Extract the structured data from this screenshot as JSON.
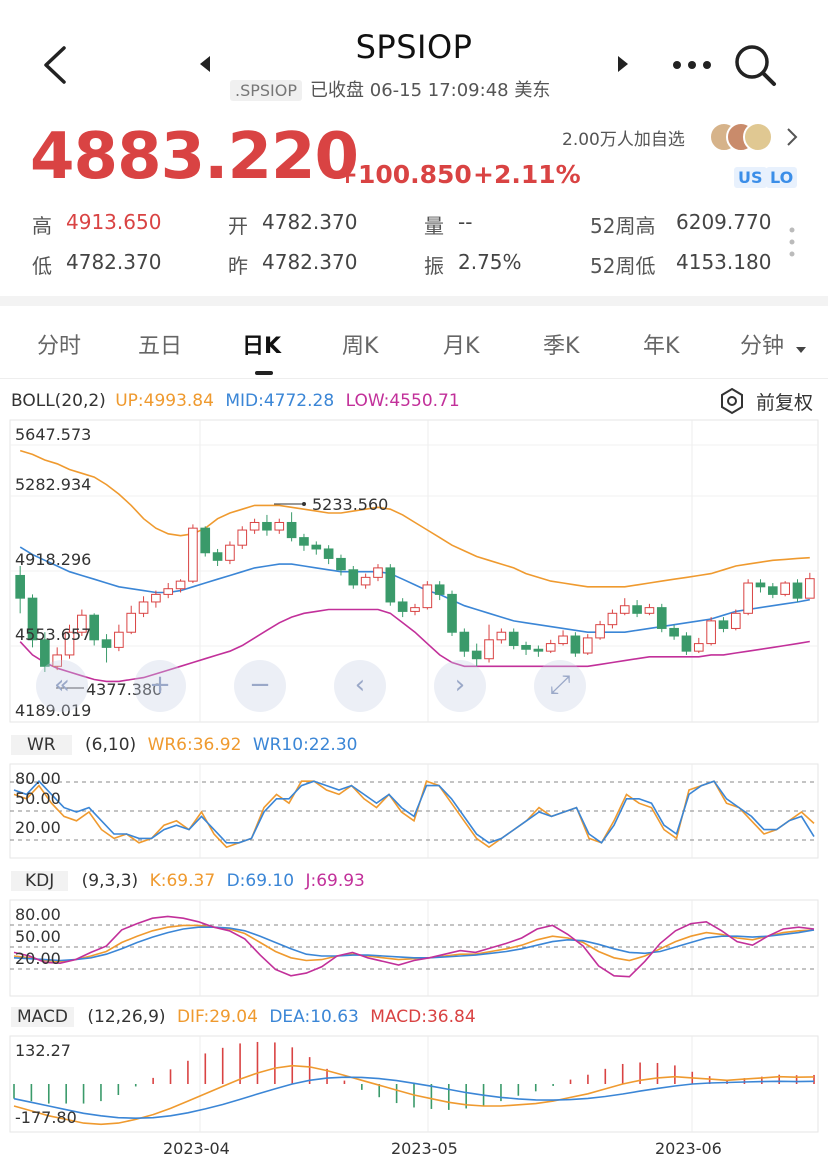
{
  "header": {
    "title": "SPSIOP",
    "code": ".SPSIOP",
    "status": "已收盘 06-15 17:09:48 美东"
  },
  "quote": {
    "price": "4883.220",
    "change": "+100.850",
    "change_pct": "+2.11%",
    "follow_text": "2.00万人加自选",
    "badge_us": "US",
    "badge_lo": "LO"
  },
  "stats": [
    {
      "label": "高",
      "value": "4913.650"
    },
    {
      "label": "开",
      "value": "4782.370"
    },
    {
      "label": "量",
      "value": "--"
    },
    {
      "label": "52周高",
      "value": "6209.770"
    },
    {
      "label": "低",
      "value": "4782.370"
    },
    {
      "label": "昨",
      "value": "4782.370"
    },
    {
      "label": "振",
      "value": "2.75%"
    },
    {
      "label": "52周低",
      "value": "4153.180"
    }
  ],
  "tabs": [
    "分时",
    "五日",
    "日K",
    "周K",
    "月K",
    "季K",
    "年K",
    "分钟"
  ],
  "active_tab": "日K",
  "fuquan": "前复权",
  "boll": {
    "name": "BOLL(20,2)",
    "up": "UP:4993.84",
    "mid": "MID:4772.28",
    "low": "LOW:4550.71",
    "axis": [
      "5647.573",
      "5282.934",
      "4918.296",
      "4553.657",
      "4189.019"
    ],
    "high_marker": "5233.560",
    "low_marker": "4377.380"
  },
  "wr": {
    "name": "WR",
    "params": "(6,10)",
    "wr6": "WR6:36.92",
    "wr10": "WR10:22.30",
    "axis": [
      "80.00",
      "50.00",
      "20.00"
    ]
  },
  "kdj": {
    "name": "KDJ",
    "params": "(9,3,3)",
    "k": "K:69.37",
    "d": "D:69.10",
    "j": "J:69.93",
    "axis": [
      "80.00",
      "50.00",
      "20.00"
    ]
  },
  "macd": {
    "name": "MACD",
    "params": "(12,26,9)",
    "dif": "DIF:29.04",
    "dea": "DEA:10.63",
    "macd": "MACD:36.84",
    "axis": [
      "132.27",
      "-177.80"
    ]
  },
  "dates": [
    "2023-04",
    "2023-05",
    "2023-06"
  ],
  "colors": {
    "up": "#d94343",
    "down": "#3a9a6a",
    "orange": "#ef9a2f",
    "blue": "#3b86d6",
    "magenta": "#c2309a"
  },
  "chart_data": {
    "type": "candlestick",
    "ylim": [
      4189.019,
      5647.573
    ],
    "candles": [
      [
        4900,
        4780,
        4950,
        4700
      ],
      [
        4780,
        4560,
        4800,
        4520
      ],
      [
        4560,
        4420,
        4600,
        4390
      ],
      [
        4420,
        4480,
        4520,
        4400
      ],
      [
        4480,
        4600,
        4640,
        4460
      ],
      [
        4600,
        4690,
        4720,
        4580
      ],
      [
        4690,
        4560,
        4700,
        4530
      ],
      [
        4560,
        4520,
        4590,
        4440
      ],
      [
        4520,
        4600,
        4640,
        4500
      ],
      [
        4600,
        4700,
        4740,
        4590
      ],
      [
        4700,
        4760,
        4790,
        4680
      ],
      [
        4760,
        4800,
        4820,
        4730
      ],
      [
        4800,
        4830,
        4860,
        4780
      ],
      [
        4830,
        4870,
        4880,
        4810
      ],
      [
        4870,
        5150,
        5170,
        4860
      ],
      [
        5150,
        5020,
        5160,
        5000
      ],
      [
        5020,
        4980,
        5040,
        4950
      ],
      [
        4980,
        5060,
        5080,
        4960
      ],
      [
        5060,
        5140,
        5160,
        5040
      ],
      [
        5140,
        5180,
        5200,
        5120
      ],
      [
        5180,
        5140,
        5220,
        5110
      ],
      [
        5140,
        5180,
        5200,
        5120
      ],
      [
        5180,
        5100,
        5234,
        5080
      ],
      [
        5100,
        5060,
        5120,
        5030
      ],
      [
        5060,
        5040,
        5080,
        5010
      ],
      [
        5040,
        4990,
        5060,
        4960
      ],
      [
        4990,
        4930,
        5010,
        4900
      ],
      [
        4930,
        4850,
        4950,
        4830
      ],
      [
        4850,
        4890,
        4910,
        4830
      ],
      [
        4890,
        4940,
        4960,
        4870
      ],
      [
        4940,
        4760,
        4960,
        4740
      ],
      [
        4760,
        4710,
        4780,
        4680
      ],
      [
        4710,
        4730,
        4750,
        4690
      ],
      [
        4730,
        4850,
        4870,
        4720
      ],
      [
        4850,
        4800,
        4870,
        4770
      ],
      [
        4800,
        4600,
        4820,
        4580
      ],
      [
        4600,
        4500,
        4620,
        4470
      ],
      [
        4500,
        4460,
        4540,
        4420
      ],
      [
        4460,
        4560,
        4640,
        4440
      ],
      [
        4560,
        4600,
        4620,
        4540
      ],
      [
        4600,
        4530,
        4620,
        4510
      ],
      [
        4530,
        4510,
        4550,
        4480
      ],
      [
        4510,
        4500,
        4530,
        4470
      ],
      [
        4500,
        4540,
        4560,
        4490
      ],
      [
        4540,
        4580,
        4610,
        4530
      ],
      [
        4580,
        4490,
        4600,
        4470
      ],
      [
        4490,
        4570,
        4590,
        4480
      ],
      [
        4570,
        4640,
        4660,
        4560
      ],
      [
        4640,
        4700,
        4720,
        4620
      ],
      [
        4700,
        4740,
        4780,
        4690
      ],
      [
        4740,
        4700,
        4770,
        4680
      ],
      [
        4700,
        4730,
        4750,
        4690
      ],
      [
        4730,
        4620,
        4750,
        4600
      ],
      [
        4620,
        4580,
        4640,
        4560
      ],
      [
        4580,
        4500,
        4600,
        4480
      ],
      [
        4500,
        4540,
        4570,
        4490
      ],
      [
        4540,
        4660,
        4680,
        4530
      ],
      [
        4660,
        4620,
        4680,
        4600
      ],
      [
        4620,
        4700,
        4720,
        4610
      ],
      [
        4700,
        4860,
        4880,
        4690
      ],
      [
        4860,
        4840,
        4880,
        4810
      ],
      [
        4840,
        4800,
        4860,
        4780
      ],
      [
        4800,
        4860,
        4870,
        4790
      ],
      [
        4860,
        4780,
        4880,
        4760
      ],
      [
        4780,
        4883,
        4914,
        4782
      ]
    ],
    "boll_up": [
      5560,
      5540,
      5510,
      5490,
      5460,
      5440,
      5420,
      5380,
      5330,
      5270,
      5200,
      5150,
      5120,
      5110,
      5120,
      5150,
      5200,
      5230,
      5250,
      5270,
      5270,
      5270,
      5260,
      5250,
      5240,
      5230,
      5230,
      5240,
      5250,
      5260,
      5250,
      5220,
      5180,
      5140,
      5100,
      5060,
      5030,
      5000,
      4980,
      4960,
      4940,
      4910,
      4890,
      4870,
      4860,
      4850,
      4840,
      4840,
      4840,
      4840,
      4850,
      4860,
      4870,
      4880,
      4890,
      4900,
      4910,
      4930,
      4950,
      4960,
      4970,
      4980,
      4985,
      4990,
      4994
    ],
    "boll_mid": [
      5050,
      5010,
      4980,
      4950,
      4920,
      4900,
      4880,
      4860,
      4840,
      4830,
      4820,
      4810,
      4810,
      4820,
      4840,
      4860,
      4880,
      4900,
      4920,
      4940,
      4950,
      4960,
      4960,
      4950,
      4940,
      4930,
      4920,
      4920,
      4920,
      4920,
      4910,
      4880,
      4850,
      4820,
      4800,
      4770,
      4740,
      4720,
      4700,
      4680,
      4660,
      4650,
      4640,
      4630,
      4620,
      4610,
      4600,
      4600,
      4600,
      4600,
      4610,
      4620,
      4630,
      4640,
      4650,
      4660,
      4670,
      4690,
      4710,
      4720,
      4730,
      4740,
      4750,
      4760,
      4772
    ],
    "boll_low": [
      4550,
      4480,
      4440,
      4410,
      4390,
      4370,
      4350,
      4340,
      4340,
      4350,
      4360,
      4380,
      4400,
      4420,
      4440,
      4460,
      4480,
      4500,
      4530,
      4570,
      4610,
      4650,
      4680,
      4700,
      4710,
      4720,
      4720,
      4720,
      4720,
      4720,
      4700,
      4650,
      4600,
      4540,
      4480,
      4440,
      4420,
      4420,
      4420,
      4420,
      4420,
      4420,
      4420,
      4420,
      4420,
      4420,
      4420,
      4430,
      4440,
      4450,
      4460,
      4470,
      4470,
      4470,
      4470,
      4470,
      4480,
      4480,
      4490,
      4500,
      4510,
      4520,
      4530,
      4540,
      4551
    ],
    "wr6": [
      70,
      65,
      80,
      60,
      45,
      40,
      50,
      30,
      20,
      25,
      15,
      20,
      35,
      40,
      30,
      50,
      25,
      10,
      15,
      20,
      55,
      70,
      60,
      85,
      85,
      75,
      70,
      80,
      65,
      55,
      70,
      50,
      40,
      85,
      80,
      60,
      40,
      20,
      10,
      20,
      30,
      40,
      55,
      45,
      50,
      55,
      20,
      15,
      40,
      70,
      60,
      55,
      30,
      20,
      75,
      80,
      85,
      60,
      55,
      40,
      25,
      30,
      40,
      50,
      37
    ],
    "wr10": [
      75,
      70,
      85,
      70,
      55,
      50,
      55,
      40,
      25,
      25,
      20,
      20,
      30,
      35,
      30,
      45,
      30,
      15,
      15,
      20,
      50,
      65,
      65,
      80,
      85,
      80,
      75,
      80,
      70,
      60,
      70,
      55,
      45,
      80,
      80,
      65,
      45,
      25,
      15,
      20,
      30,
      40,
      50,
      45,
      50,
      55,
      25,
      15,
      35,
      65,
      65,
      60,
      35,
      25,
      70,
      80,
      85,
      65,
      55,
      45,
      30,
      30,
      40,
      45,
      22
    ],
    "kdj_k": [
      40,
      38,
      35,
      34,
      36,
      40,
      45,
      55,
      62,
      68,
      72,
      74,
      74,
      72,
      70,
      65,
      55,
      45,
      38,
      35,
      36,
      40,
      42,
      40,
      38,
      36,
      37,
      38,
      40,
      42,
      42,
      45,
      48,
      52,
      58,
      62,
      60,
      55,
      45,
      38,
      35,
      40,
      48,
      56,
      62,
      66,
      64,
      60,
      58,
      62,
      66,
      68,
      69
    ],
    "kdj_d": [
      38,
      37,
      36,
      35,
      36,
      38,
      42,
      48,
      55,
      61,
      66,
      70,
      72,
      72,
      71,
      68,
      62,
      55,
      48,
      42,
      40,
      40,
      41,
      41,
      40,
      39,
      38,
      38,
      39,
      40,
      41,
      43,
      45,
      48,
      52,
      56,
      58,
      57,
      53,
      48,
      44,
      43,
      45,
      50,
      55,
      60,
      62,
      62,
      61,
      62,
      64,
      66,
      69
    ],
    "kdj_j": [
      44,
      40,
      33,
      32,
      36,
      44,
      51,
      69,
      76,
      82,
      84,
      82,
      78,
      72,
      68,
      59,
      41,
      25,
      18,
      21,
      28,
      40,
      44,
      38,
      34,
      30,
      35,
      38,
      42,
      46,
      44,
      49,
      54,
      60,
      70,
      74,
      64,
      51,
      29,
      18,
      17,
      34,
      54,
      68,
      76,
      78,
      68,
      56,
      52,
      62,
      70,
      72,
      70
    ],
    "macd_dif": [
      -90,
      -110,
      -130,
      -145,
      -160,
      -165,
      -160,
      -145,
      -125,
      -100,
      -70,
      -40,
      -10,
      20,
      45,
      65,
      75,
      70,
      55,
      35,
      15,
      -5,
      -25,
      -45,
      -60,
      -75,
      -85,
      -90,
      -90,
      -85,
      -80,
      -70,
      -55,
      -40,
      -20,
      0,
      15,
      25,
      30,
      25,
      20,
      15,
      20,
      25,
      30,
      28,
      29
    ],
    "macd_dea": [
      -60,
      -75,
      -90,
      -105,
      -120,
      -130,
      -138,
      -140,
      -138,
      -130,
      -118,
      -102,
      -84,
      -63,
      -41,
      -20,
      0,
      15,
      24,
      28,
      27,
      22,
      14,
      3,
      -9,
      -22,
      -35,
      -46,
      -55,
      -61,
      -65,
      -66,
      -64,
      -59,
      -51,
      -41,
      -29,
      -18,
      -8,
      0,
      4,
      6,
      8,
      10,
      11,
      10,
      11
    ],
    "macd_bar": [
      -60,
      -70,
      -80,
      -80,
      -80,
      -70,
      -45,
      -10,
      25,
      60,
      95,
      125,
      148,
      166,
      172,
      170,
      150,
      110,
      62,
      14,
      -24,
      -54,
      -78,
      -96,
      -102,
      -106,
      -100,
      -88,
      -70,
      -48,
      -30,
      -8,
      18,
      38,
      62,
      82,
      88,
      86,
      76,
      50,
      32,
      18,
      24,
      30,
      38,
      36,
      37
    ]
  }
}
